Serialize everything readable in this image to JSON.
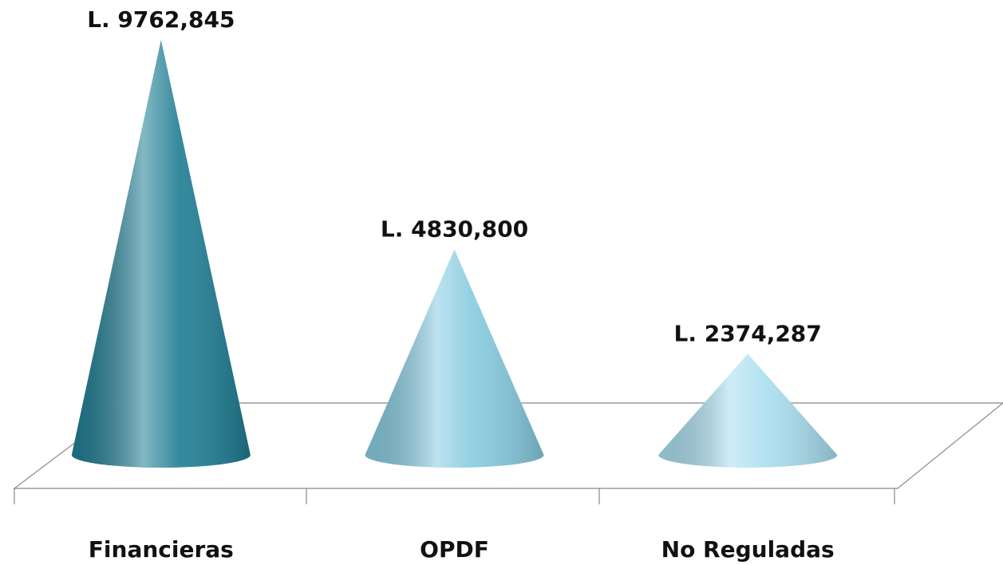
{
  "chart_data": {
    "type": "cone",
    "categories": [
      "Financieras",
      "OPDF",
      "No Reguladas"
    ],
    "values": [
      9762.845,
      4830.8,
      2374.287
    ],
    "value_labels": [
      "L. 9762,845",
      "L. 4830,800",
      "L. 2374,287"
    ],
    "colors": [
      "#1f7d93",
      "#86cbe0",
      "#a9def0"
    ]
  }
}
